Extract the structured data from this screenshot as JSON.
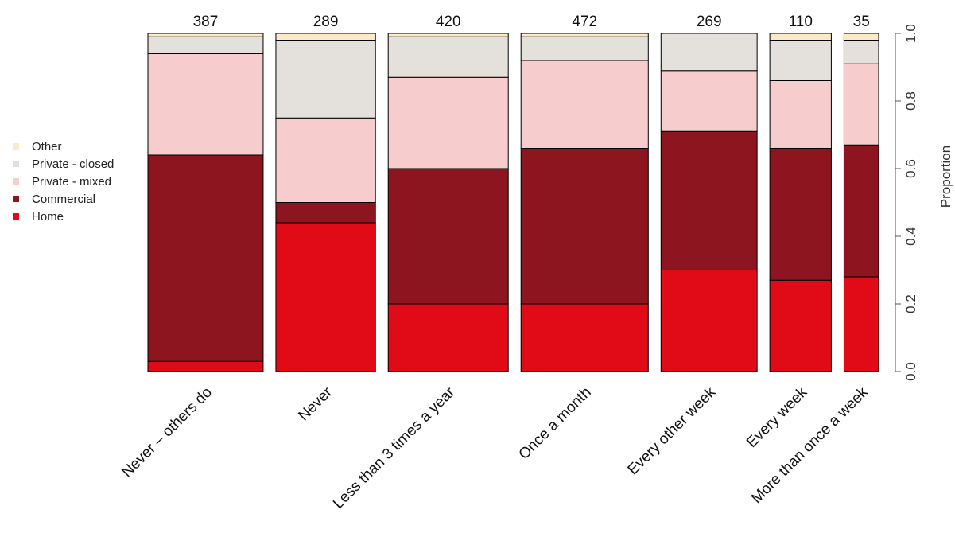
{
  "chart_data": {
    "type": "bar",
    "stacked": true,
    "variable_width": true,
    "ylabel": "Proportion",
    "ylim": [
      0,
      1
    ],
    "yticks": [
      "0.0",
      "0.2",
      "0.4",
      "0.6",
      "0.8",
      "1.0"
    ],
    "yaxis_side": "right",
    "legend_position": "left",
    "categories": [
      "Never – others do",
      "Never",
      "Less than 3 times a year",
      "Once a month",
      "Every other week",
      "Every week",
      "More than once a week"
    ],
    "counts": [
      387,
      289,
      420,
      472,
      269,
      110,
      35
    ],
    "series": [
      {
        "name": "Home",
        "color": "#e00b16",
        "values": [
          0.03,
          0.44,
          0.2,
          0.2,
          0.3,
          0.27,
          0.28
        ]
      },
      {
        "name": "Commercial",
        "color": "#8c1520",
        "values": [
          0.61,
          0.06,
          0.4,
          0.46,
          0.41,
          0.39,
          0.39
        ]
      },
      {
        "name": "Private - mixed",
        "color": "#f6cccc",
        "values": [
          0.3,
          0.25,
          0.27,
          0.26,
          0.18,
          0.2,
          0.24
        ]
      },
      {
        "name": "Private - closed",
        "color": "#e4e1dd",
        "values": [
          0.05,
          0.23,
          0.12,
          0.07,
          0.11,
          0.12,
          0.07
        ]
      },
      {
        "name": "Other",
        "color": "#fce9c6",
        "values": [
          0.01,
          0.02,
          0.01,
          0.01,
          0.0,
          0.02,
          0.02
        ]
      }
    ],
    "legend_order": [
      "Other",
      "Private - closed",
      "Private - mixed",
      "Commercial",
      "Home"
    ]
  }
}
